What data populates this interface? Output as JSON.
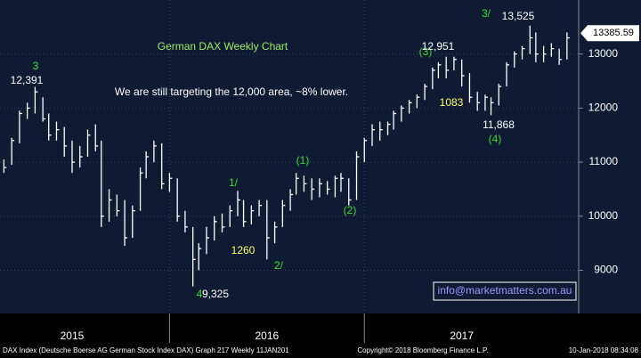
{
  "chart_data": {
    "type": "hlc",
    "title": "German DAX Weekly Chart",
    "subtitle": "We are still targeting the 12,000 area, ~8% lower.",
    "color": "#ffffff",
    "x": [
      2015.15,
      2015.19,
      2015.23,
      2015.27,
      2015.31,
      2015.35,
      2015.38,
      2015.42,
      2015.46,
      2015.5,
      2015.54,
      2015.58,
      2015.62,
      2015.65,
      2015.69,
      2015.73,
      2015.77,
      2015.81,
      2015.85,
      2015.88,
      2015.92,
      2015.96,
      2016.0,
      2016.04,
      2016.08,
      2016.12,
      2016.15,
      2016.19,
      2016.23,
      2016.27,
      2016.31,
      2016.35,
      2016.38,
      2016.42,
      2016.46,
      2016.5,
      2016.54,
      2016.58,
      2016.62,
      2016.65,
      2016.69,
      2016.73,
      2016.77,
      2016.81,
      2016.85,
      2016.88,
      2016.92,
      2016.96,
      2017.0,
      2017.04,
      2017.08,
      2017.12,
      2017.15,
      2017.19,
      2017.23,
      2017.27,
      2017.31,
      2017.35,
      2017.38,
      2017.42,
      2017.46,
      2017.5,
      2017.54,
      2017.58,
      2017.62,
      2017.65,
      2017.69,
      2017.73,
      2017.77,
      2017.81,
      2017.85,
      2017.88,
      2017.92,
      2017.96,
      2018.0,
      2018.04
    ],
    "high": [
      11050,
      11450,
      11950,
      12100,
      12391,
      12200,
      11900,
      11750,
      11650,
      11400,
      11300,
      11600,
      11700,
      11400,
      10500,
      10400,
      10300,
      10200,
      10900,
      11200,
      11400,
      11350,
      10800,
      10700,
      10100,
      9800,
      9500,
      9800,
      10000,
      10050,
      10200,
      10470,
      10300,
      10200,
      10300,
      10300,
      9900,
      10300,
      10500,
      10800,
      10750,
      10700,
      10700,
      10650,
      10750,
      10800,
      10700,
      11200,
      11450,
      11700,
      11750,
      11750,
      11950,
      12050,
      12150,
      12250,
      12450,
      12750,
      12850,
      12951,
      12950,
      12900,
      12650,
      12300,
      12250,
      12200,
      12450,
      12850,
      13050,
      13150,
      13525,
      13400,
      13150,
      13200,
      13100,
      13400
    ],
    "low": [
      10800,
      10950,
      11350,
      11800,
      11900,
      11750,
      11400,
      11400,
      11100,
      10800,
      10900,
      11100,
      11200,
      9800,
      9900,
      10000,
      9450,
      9600,
      10100,
      10700,
      11000,
      10500,
      10450,
      9900,
      9700,
      8700,
      9000,
      9300,
      9550,
      9700,
      9800,
      10000,
      9800,
      9850,
      10000,
      9200,
      9500,
      9800,
      10100,
      10400,
      10450,
      10300,
      10350,
      10400,
      10350,
      10450,
      10200,
      10300,
      11000,
      11300,
      11400,
      11500,
      11600,
      11750,
      11900,
      12000,
      12150,
      12350,
      12550,
      12550,
      12700,
      12400,
      12100,
      11950,
      11950,
      11868,
      12050,
      12400,
      12750,
      12900,
      13000,
      12850,
      12850,
      12950,
      12800,
      12900
    ],
    "close": [
      10900,
      11400,
      11900,
      12000,
      12300,
      11800,
      11500,
      11600,
      11300,
      11000,
      11100,
      11500,
      11300,
      10000,
      10300,
      10100,
      9600,
      10100,
      10800,
      11100,
      11300,
      10600,
      10700,
      10000,
      9800,
      9200,
      9400,
      9600,
      9900,
      9800,
      10100,
      10300,
      9900,
      10100,
      10200,
      9600,
      9800,
      10200,
      10400,
      10700,
      10600,
      10500,
      10600,
      10500,
      10700,
      10700,
      10300,
      11100,
      11400,
      11600,
      11600,
      11700,
      11900,
      12000,
      12100,
      12200,
      12400,
      12700,
      12800,
      12700,
      12900,
      12600,
      12200,
      12100,
      12200,
      12100,
      12400,
      12800,
      13000,
      13100,
      13300,
      13000,
      13000,
      13100,
      12900,
      13300
    ],
    "last_price": 13385.59,
    "xlim": [
      2015.13,
      2018.1
    ],
    "xticks": [
      {
        "value": 2015.5,
        "label": "2015"
      },
      {
        "value": 2016.5,
        "label": "2016"
      },
      {
        "value": 2017.5,
        "label": "2017"
      }
    ],
    "ylim": [
      8200,
      14000
    ],
    "yticks": [
      9000,
      10000,
      11000,
      12000,
      13000
    ],
    "grid": true,
    "annotations": [
      {
        "text": "3",
        "color": "#33dd33"
      },
      {
        "text": "12,391",
        "color": "#ffffff"
      },
      {
        "text": "1/",
        "color": "#33dd33"
      },
      {
        "text": "(1)",
        "color": "#33dd33"
      },
      {
        "text": "1260",
        "color": "#ffff66"
      },
      {
        "text": "2/",
        "color": "#33dd33"
      },
      {
        "text": "(2)",
        "color": "#33dd33"
      },
      {
        "text": "9,325",
        "color": "#ffffff"
      },
      {
        "text": "4",
        "color": "#33dd33"
      },
      {
        "text": "(3)",
        "color": "#33dd33"
      },
      {
        "text": "12,951",
        "color": "#ffffff"
      },
      {
        "text": "1083",
        "color": "#ffff66"
      },
      {
        "text": "11,868",
        "color": "#ffffff"
      },
      {
        "text": "(4)",
        "color": "#33dd33"
      },
      {
        "text": "3/",
        "color": "#33dd33"
      },
      {
        "text": "13,525",
        "color": "#ffffff"
      }
    ],
    "contact": "info@marketmatters.com.au",
    "footer_left": "DAX Index (Deutsche Boerse AG German Stock Index DAX) Graph 217  Weekly 11JAN201",
    "footer_middle": "Copyright© 2018 Bloomberg Finance L.P.",
    "footer_right": "10-Jan-2018 08:34:08"
  }
}
